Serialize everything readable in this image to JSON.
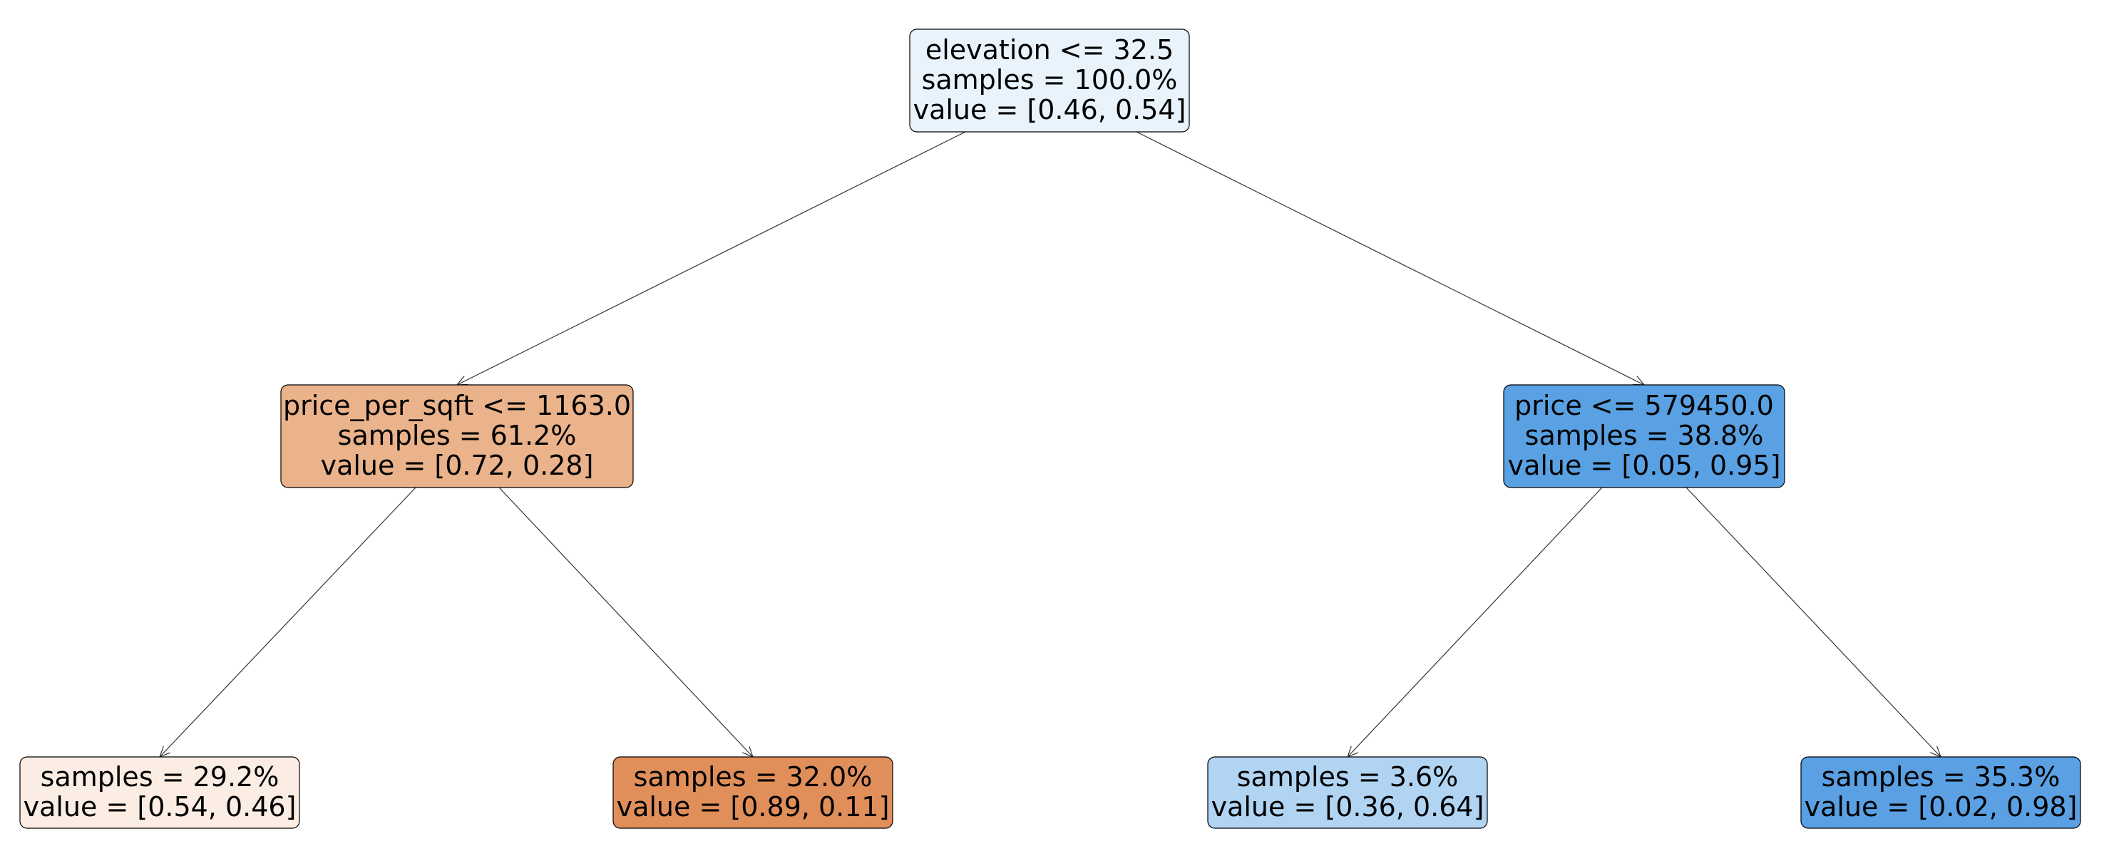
{
  "tree": {
    "nodes": [
      {
        "id": "root",
        "lines": [
          "elevation <= 32.5",
          "samples = 100.0%",
          "value = [0.46, 0.54]"
        ],
        "fill": "#e8f3fc"
      },
      {
        "id": "left",
        "lines": [
          "price_per_sqft <= 1163.0",
          "samples = 61.2%",
          "value = [0.72, 0.28]"
        ],
        "fill": "#eab38b"
      },
      {
        "id": "right",
        "lines": [
          "price <= 579450.0",
          "samples = 38.8%",
          "value = [0.05, 0.95]"
        ],
        "fill": "#5aa1e3"
      },
      {
        "id": "left-left",
        "lines": [
          "samples = 29.2%",
          "value = [0.54, 0.46]"
        ],
        "fill": "#fbede3"
      },
      {
        "id": "left-right",
        "lines": [
          "samples = 32.0%",
          "value = [0.89, 0.11]"
        ],
        "fill": "#e08f5a"
      },
      {
        "id": "right-left",
        "lines": [
          "samples = 3.6%",
          "value = [0.36, 0.64]"
        ],
        "fill": "#b1d4f3"
      },
      {
        "id": "right-right",
        "lines": [
          "samples = 35.3%",
          "value = [0.02, 0.98]"
        ],
        "fill": "#5aa0e3"
      }
    ],
    "edges": [
      {
        "from": "root",
        "to": "left"
      },
      {
        "from": "root",
        "to": "right"
      },
      {
        "from": "left",
        "to": "left-left"
      },
      {
        "from": "left",
        "to": "left-right"
      },
      {
        "from": "right",
        "to": "right-left"
      },
      {
        "from": "right",
        "to": "right-right"
      }
    ]
  }
}
